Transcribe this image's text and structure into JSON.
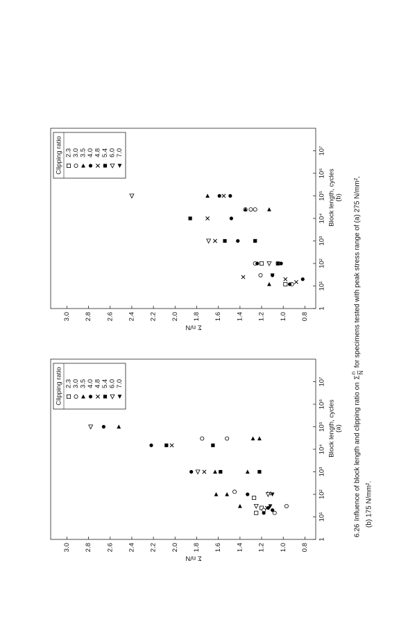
{
  "chart_data": [
    {
      "type": "scatter",
      "subtitle": "(a)",
      "xlabel": "Block length, cycles",
      "ylabel": "Σ n/N",
      "xscale": "log",
      "xlim": [
        1,
        100000000
      ],
      "xticks": [
        1,
        {
          "value": 10,
          "label": "10¹"
        },
        {
          "value": 100,
          "label": "10²"
        },
        {
          "value": 1000,
          "label": "10³"
        },
        {
          "value": 10000,
          "label": "10⁴"
        },
        {
          "value": 100000,
          "label": "10⁵"
        },
        {
          "value": 1000000,
          "label": "10⁶"
        },
        {
          "value": 10000000,
          "label": "10⁷"
        }
      ],
      "ylim": [
        0.7,
        3.15
      ],
      "yticks": [
        0.8,
        {
          "value": 1,
          "label": "1.0"
        },
        1.2,
        1.4,
        1.6,
        1.8,
        {
          "value": 2,
          "label": "2.0"
        },
        2.2,
        2.4,
        2.6,
        2.8,
        {
          "value": 3,
          "label": "3.0"
        }
      ],
      "legend_title": "Clipping ratio",
      "legend_position": "upper right",
      "series": [
        {
          "name": "2.3",
          "marker": "square-open",
          "color": "#000000",
          "x": [
            15,
            70,
            25
          ],
          "values": [
            1.25,
            1.27,
            1.2
          ]
        },
        {
          "name": "3.0",
          "marker": "circle-open",
          "color": "#000000",
          "x": [
            30000,
            30000,
            130,
            30,
            15,
            20
          ],
          "values": [
            1.75,
            1.52,
            1.45,
            0.97,
            1.08,
            1.18
          ]
        },
        {
          "name": "3.5",
          "marker": "triangle-up",
          "color": "#000000",
          "x": [
            100000,
            30000,
            30000,
            1000,
            1000,
            100,
            100,
            30
          ],
          "values": [
            2.52,
            1.28,
            1.22,
            1.63,
            1.33,
            1.62,
            1.52,
            1.4
          ]
        },
        {
          "name": "4.0",
          "marker": "circle",
          "color": "#000000",
          "x": [
            100000,
            15000,
            1000,
            100,
            20,
            15,
            25
          ],
          "values": [
            2.66,
            2.22,
            1.85,
            1.33,
            1.1,
            1.18,
            1.14
          ]
        },
        {
          "name": "4.8",
          "marker": "x",
          "color": "#000000",
          "x": [
            15000,
            1000,
            25,
            110
          ],
          "values": [
            2.03,
            1.73,
            1.15,
            1.13
          ]
        },
        {
          "name": "5.4",
          "marker": "square",
          "color": "#000000",
          "x": [
            15000,
            15000,
            1000,
            1000
          ],
          "values": [
            2.08,
            1.65,
            1.58,
            1.22
          ]
        },
        {
          "name": "6.0",
          "marker": "triangle-down-open",
          "color": "#000000",
          "x": [
            100000,
            1000,
            100,
            30
          ],
          "values": [
            2.78,
            1.79,
            1.14,
            1.25
          ]
        },
        {
          "name": "7.0",
          "marker": "triangle-down",
          "color": "#000000",
          "x": [
            100,
            30
          ],
          "values": [
            1.1,
            1.12
          ]
        }
      ]
    },
    {
      "type": "scatter",
      "subtitle": "(b)",
      "xlabel": "Block length, cycles",
      "ylabel": "Σ n/N",
      "xscale": "log",
      "xlim": [
        1,
        100000000
      ],
      "xticks": [
        1,
        {
          "value": 10,
          "label": "10¹"
        },
        {
          "value": 100,
          "label": "10²"
        },
        {
          "value": 1000,
          "label": "10³"
        },
        {
          "value": 10000,
          "label": "10⁴"
        },
        {
          "value": 100000,
          "label": "10⁵"
        },
        {
          "value": 1000000,
          "label": "10⁶"
        },
        {
          "value": 10000000,
          "label": "10⁷"
        }
      ],
      "ylim": [
        0.7,
        3.15
      ],
      "yticks": [
        0.8,
        {
          "value": 1,
          "label": "1.0"
        },
        1.2,
        1.4,
        1.6,
        1.8,
        {
          "value": 2,
          "label": "2.0"
        },
        2.2,
        2.4,
        2.6,
        2.8,
        {
          "value": 3,
          "label": "3.0"
        }
      ],
      "legend_title": "Clipping ratio",
      "legend_position": "upper right",
      "series": [
        {
          "name": "2.3",
          "marker": "square-open",
          "color": "#000000",
          "x": [
            100,
            12
          ],
          "values": [
            1.2,
            0.98
          ]
        },
        {
          "name": "3.0",
          "marker": "circle-open",
          "color": "#000000",
          "x": [
            25000,
            25000,
            25000,
            100,
            30,
            12,
            100
          ],
          "values": [
            1.35,
            1.3,
            1.26,
            1.26,
            1.21,
            0.92,
            1.05
          ]
        },
        {
          "name": "3.5",
          "marker": "triangle-up",
          "color": "#000000",
          "x": [
            100000,
            25000,
            25000,
            100,
            12
          ],
          "values": [
            1.7,
            1.35,
            1.13,
            1.05,
            1.13
          ]
        },
        {
          "name": "4.0",
          "marker": "circle",
          "color": "#000000",
          "x": [
            100000,
            100000,
            10000,
            1000,
            100,
            30,
            100,
            12,
            20
          ],
          "values": [
            1.59,
            1.49,
            1.48,
            1.42,
            1.24,
            1.1,
            1.02,
            0.94,
            0.82
          ]
        },
        {
          "name": "4.8",
          "marker": "x",
          "color": "#000000",
          "x": [
            100000,
            10000,
            1000,
            25,
            100,
            20,
            15
          ],
          "values": [
            1.55,
            1.7,
            1.63,
            1.37,
            1.05,
            0.98,
            0.88
          ]
        },
        {
          "name": "5.4",
          "marker": "square",
          "color": "#000000",
          "x": [
            10000,
            1000,
            1000
          ],
          "values": [
            1.86,
            1.54,
            1.26
          ]
        },
        {
          "name": "6.0",
          "marker": "triangle-down-open",
          "color": "#000000",
          "x": [
            100000,
            1000,
            100
          ],
          "values": [
            2.4,
            1.69,
            1.13
          ]
        },
        {
          "name": "7.0",
          "marker": "triangle-down",
          "color": "#000000",
          "x": [
            1000,
            100,
            30
          ],
          "values": [
            1.26,
            1.05,
            1.1
          ]
        }
      ]
    }
  ],
  "caption": {
    "number": "6.26",
    "before": "Influence of block length and clipping ratio on",
    "symbol": "Σ",
    "numerator": "n",
    "denominator": "N",
    "after": "for specimens tested with peak stress range of (a) 275 N/mm², ",
    "line2": "(b) 175 N/mm²."
  }
}
